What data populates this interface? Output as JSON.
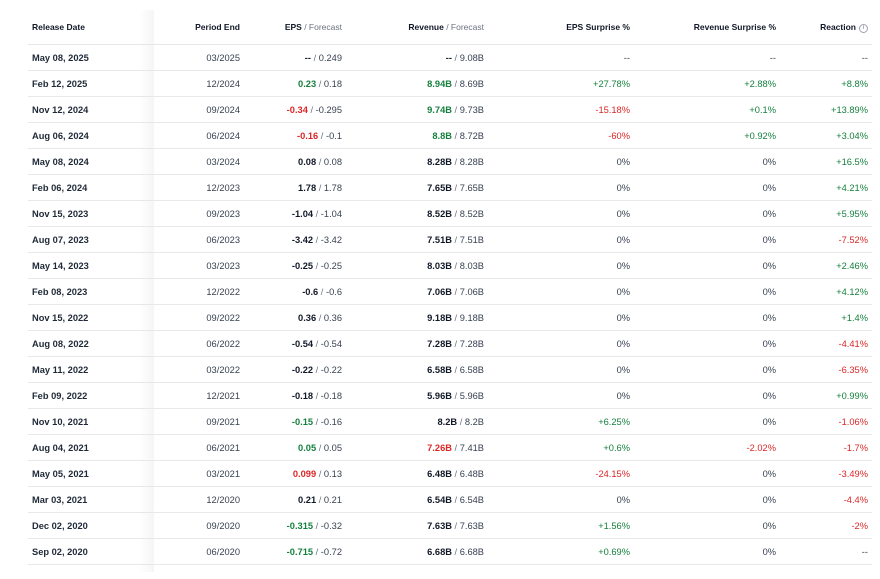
{
  "headers": {
    "release_date": "Release Date",
    "period_end": "Period End",
    "eps": "EPS",
    "eps_forecast": "Forecast",
    "revenue": "Revenue",
    "revenue_forecast": "Forecast",
    "eps_surprise": "EPS Surprise %",
    "revenue_surprise": "Revenue Surprise %",
    "reaction": "Reaction",
    "separator": " / ",
    "info_icon": "info-icon"
  },
  "colors": {
    "positive": "#15803d",
    "negative": "#dc2626",
    "neutral": "#111827"
  },
  "rows": [
    {
      "date": "May 08, 2025",
      "period": "03/2025",
      "eps": "--",
      "eps_s": "neu",
      "eps_f": "0.249",
      "rev": "--",
      "rev_s": "neu",
      "rev_f": "9.08B",
      "eps_sur": "--",
      "eps_sur_s": "muted",
      "rev_sur": "--",
      "rev_sur_s": "muted",
      "reaction": "--",
      "reaction_s": "muted"
    },
    {
      "date": "Feb 12, 2025",
      "period": "12/2024",
      "eps": "0.23",
      "eps_s": "pos",
      "eps_f": "0.18",
      "rev": "8.94B",
      "rev_s": "pos",
      "rev_f": "8.69B",
      "eps_sur": "+27.78%",
      "eps_sur_s": "pos",
      "rev_sur": "+2.88%",
      "rev_sur_s": "pos",
      "reaction": "+8.8%",
      "reaction_s": "pos"
    },
    {
      "date": "Nov 12, 2024",
      "period": "09/2024",
      "eps": "-0.34",
      "eps_s": "neg",
      "eps_f": "-0.295",
      "rev": "9.74B",
      "rev_s": "pos",
      "rev_f": "9.73B",
      "eps_sur": "-15.18%",
      "eps_sur_s": "neg",
      "rev_sur": "+0.1%",
      "rev_sur_s": "pos",
      "reaction": "+13.89%",
      "reaction_s": "pos"
    },
    {
      "date": "Aug 06, 2024",
      "period": "06/2024",
      "eps": "-0.16",
      "eps_s": "neg",
      "eps_f": "-0.1",
      "rev": "8.8B",
      "rev_s": "pos",
      "rev_f": "8.72B",
      "eps_sur": "-60%",
      "eps_sur_s": "neg",
      "rev_sur": "+0.92%",
      "rev_sur_s": "pos",
      "reaction": "+3.04%",
      "reaction_s": "pos"
    },
    {
      "date": "May 08, 2024",
      "period": "03/2024",
      "eps": "0.08",
      "eps_s": "neu",
      "eps_f": "0.08",
      "rev": "8.28B",
      "rev_s": "neu",
      "rev_f": "8.28B",
      "eps_sur": "0%",
      "eps_sur_s": "muted",
      "rev_sur": "0%",
      "rev_sur_s": "muted",
      "reaction": "+16.5%",
      "reaction_s": "pos"
    },
    {
      "date": "Feb 06, 2024",
      "period": "12/2023",
      "eps": "1.78",
      "eps_s": "neu",
      "eps_f": "1.78",
      "rev": "7.65B",
      "rev_s": "neu",
      "rev_f": "7.65B",
      "eps_sur": "0%",
      "eps_sur_s": "muted",
      "rev_sur": "0%",
      "rev_sur_s": "muted",
      "reaction": "+4.21%",
      "reaction_s": "pos"
    },
    {
      "date": "Nov 15, 2023",
      "period": "09/2023",
      "eps": "-1.04",
      "eps_s": "neu",
      "eps_f": "-1.04",
      "rev": "8.52B",
      "rev_s": "neu",
      "rev_f": "8.52B",
      "eps_sur": "0%",
      "eps_sur_s": "muted",
      "rev_sur": "0%",
      "rev_sur_s": "muted",
      "reaction": "+5.95%",
      "reaction_s": "pos"
    },
    {
      "date": "Aug 07, 2023",
      "period": "06/2023",
      "eps": "-3.42",
      "eps_s": "neu",
      "eps_f": "-3.42",
      "rev": "7.51B",
      "rev_s": "neu",
      "rev_f": "7.51B",
      "eps_sur": "0%",
      "eps_sur_s": "muted",
      "rev_sur": "0%",
      "rev_sur_s": "muted",
      "reaction": "-7.52%",
      "reaction_s": "neg"
    },
    {
      "date": "May 14, 2023",
      "period": "03/2023",
      "eps": "-0.25",
      "eps_s": "neu",
      "eps_f": "-0.25",
      "rev": "8.03B",
      "rev_s": "neu",
      "rev_f": "8.03B",
      "eps_sur": "0%",
      "eps_sur_s": "muted",
      "rev_sur": "0%",
      "rev_sur_s": "muted",
      "reaction": "+2.46%",
      "reaction_s": "pos"
    },
    {
      "date": "Feb 08, 2023",
      "period": "12/2022",
      "eps": "-0.6",
      "eps_s": "neu",
      "eps_f": "-0.6",
      "rev": "7.06B",
      "rev_s": "neu",
      "rev_f": "7.06B",
      "eps_sur": "0%",
      "eps_sur_s": "muted",
      "rev_sur": "0%",
      "rev_sur_s": "muted",
      "reaction": "+4.12%",
      "reaction_s": "pos"
    },
    {
      "date": "Nov 15, 2022",
      "period": "09/2022",
      "eps": "0.36",
      "eps_s": "neu",
      "eps_f": "0.36",
      "rev": "9.18B",
      "rev_s": "neu",
      "rev_f": "9.18B",
      "eps_sur": "0%",
      "eps_sur_s": "muted",
      "rev_sur": "0%",
      "rev_sur_s": "muted",
      "reaction": "+1.4%",
      "reaction_s": "pos"
    },
    {
      "date": "Aug 08, 2022",
      "period": "06/2022",
      "eps": "-0.54",
      "eps_s": "neu",
      "eps_f": "-0.54",
      "rev": "7.28B",
      "rev_s": "neu",
      "rev_f": "7.28B",
      "eps_sur": "0%",
      "eps_sur_s": "muted",
      "rev_sur": "0%",
      "rev_sur_s": "muted",
      "reaction": "-4.41%",
      "reaction_s": "neg"
    },
    {
      "date": "May 11, 2022",
      "period": "03/2022",
      "eps": "-0.22",
      "eps_s": "neu",
      "eps_f": "-0.22",
      "rev": "6.58B",
      "rev_s": "neu",
      "rev_f": "6.58B",
      "eps_sur": "0%",
      "eps_sur_s": "muted",
      "rev_sur": "0%",
      "rev_sur_s": "muted",
      "reaction": "-6.35%",
      "reaction_s": "neg"
    },
    {
      "date": "Feb 09, 2022",
      "period": "12/2021",
      "eps": "-0.18",
      "eps_s": "neu",
      "eps_f": "-0.18",
      "rev": "5.96B",
      "rev_s": "neu",
      "rev_f": "5.96B",
      "eps_sur": "0%",
      "eps_sur_s": "muted",
      "rev_sur": "0%",
      "rev_sur_s": "muted",
      "reaction": "+0.99%",
      "reaction_s": "pos"
    },
    {
      "date": "Nov 10, 2021",
      "period": "09/2021",
      "eps": "-0.15",
      "eps_s": "pos",
      "eps_f": "-0.16",
      "rev": "8.2B",
      "rev_s": "neu",
      "rev_f": "8.2B",
      "eps_sur": "+6.25%",
      "eps_sur_s": "pos",
      "rev_sur": "0%",
      "rev_sur_s": "muted",
      "reaction": "-1.06%",
      "reaction_s": "neg"
    },
    {
      "date": "Aug 04, 2021",
      "period": "06/2021",
      "eps": "0.05",
      "eps_s": "pos",
      "eps_f": "0.05",
      "rev": "7.26B",
      "rev_s": "neg",
      "rev_f": "7.41B",
      "eps_sur": "+0.6%",
      "eps_sur_s": "pos",
      "rev_sur": "-2.02%",
      "rev_sur_s": "neg",
      "reaction": "-1.7%",
      "reaction_s": "neg"
    },
    {
      "date": "May 05, 2021",
      "period": "03/2021",
      "eps": "0.099",
      "eps_s": "neg",
      "eps_f": "0.13",
      "rev": "6.48B",
      "rev_s": "neu",
      "rev_f": "6.48B",
      "eps_sur": "-24.15%",
      "eps_sur_s": "neg",
      "rev_sur": "0%",
      "rev_sur_s": "muted",
      "reaction": "-3.49%",
      "reaction_s": "neg"
    },
    {
      "date": "Mar 03, 2021",
      "period": "12/2020",
      "eps": "0.21",
      "eps_s": "neu",
      "eps_f": "0.21",
      "rev": "6.54B",
      "rev_s": "neu",
      "rev_f": "6.54B",
      "eps_sur": "0%",
      "eps_sur_s": "muted",
      "rev_sur": "0%",
      "rev_sur_s": "muted",
      "reaction": "-4.4%",
      "reaction_s": "neg"
    },
    {
      "date": "Dec 02, 2020",
      "period": "09/2020",
      "eps": "-0.315",
      "eps_s": "pos",
      "eps_f": "-0.32",
      "rev": "7.63B",
      "rev_s": "neu",
      "rev_f": "7.63B",
      "eps_sur": "+1.56%",
      "eps_sur_s": "pos",
      "rev_sur": "0%",
      "rev_sur_s": "muted",
      "reaction": "-2%",
      "reaction_s": "neg"
    },
    {
      "date": "Sep 02, 2020",
      "period": "06/2020",
      "eps": "-0.715",
      "eps_s": "pos",
      "eps_f": "-0.72",
      "rev": "6.68B",
      "rev_s": "neu",
      "rev_f": "6.68B",
      "eps_sur": "+0.69%",
      "eps_sur_s": "pos",
      "rev_sur": "0%",
      "rev_sur_s": "muted",
      "reaction": "--",
      "reaction_s": "muted"
    }
  ]
}
